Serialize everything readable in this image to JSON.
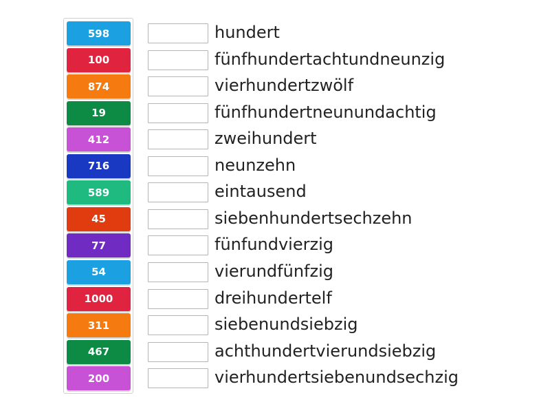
{
  "tiles": [
    {
      "label": "598",
      "color": "#1ba0e1"
    },
    {
      "label": "100",
      "color": "#e0243f"
    },
    {
      "label": "874",
      "color": "#f57b10"
    },
    {
      "label": "19",
      "color": "#0d8a43"
    },
    {
      "label": "412",
      "color": "#c752d6"
    },
    {
      "label": "716",
      "color": "#1a39c2"
    },
    {
      "label": "589",
      "color": "#1fba80"
    },
    {
      "label": "45",
      "color": "#e03c10"
    },
    {
      "label": "77",
      "color": "#6f2bc2"
    },
    {
      "label": "54",
      "color": "#1ba0e1"
    },
    {
      "label": "1000",
      "color": "#e0243f"
    },
    {
      "label": "311",
      "color": "#f57b10"
    },
    {
      "label": "467",
      "color": "#0d8a43"
    },
    {
      "label": "200",
      "color": "#c752d6"
    }
  ],
  "words": [
    "hundert",
    "fünfhundertachtundneunzig",
    "vierhundertzwölf",
    "fünfhundertneunundachtig",
    "zweihundert",
    "neunzehn",
    "eintausend",
    "siebenhundertsechzehn",
    "fünfundvierzig",
    "vierundfünfzig",
    "dreihundertelf",
    "siebenundsiebzig",
    "achthundertvierundsiebzig",
    "vierhundertsiebenundsechzig"
  ]
}
